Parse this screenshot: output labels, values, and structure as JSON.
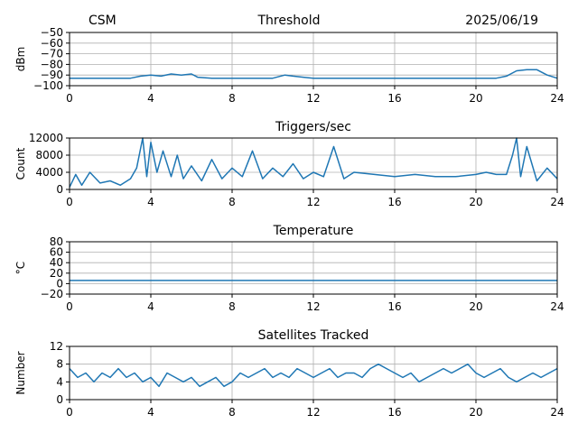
{
  "header": {
    "left": "CSM",
    "center": "Threshold",
    "right": "2025/06/19"
  },
  "colors": {
    "series": "#1f77b4",
    "grid": "#b0b0b0"
  },
  "chart_data": [
    {
      "type": "line",
      "title": "Threshold",
      "ylabel": "dBm",
      "xlabel": "",
      "xlim": [
        0,
        24
      ],
      "ylim": [
        -100,
        -50
      ],
      "x_ticks": [
        0,
        4,
        8,
        12,
        16,
        20,
        24
      ],
      "y_ticks": [
        -100,
        -90,
        -80,
        -70,
        -60,
        -50
      ],
      "grid": true,
      "series": [
        {
          "x": [
            0,
            1,
            2,
            3,
            3.5,
            4,
            4.5,
            5,
            5.5,
            6,
            6.3,
            7,
            8,
            9,
            10,
            10.6,
            11,
            11.5,
            12,
            13,
            14,
            15,
            16,
            17,
            18,
            19,
            20,
            21,
            21.5,
            22,
            22.5,
            23,
            23.5,
            24
          ],
          "values": [
            -93,
            -93,
            -93,
            -93,
            -91,
            -90,
            -91,
            -89,
            -90,
            -89,
            -92,
            -93,
            -93,
            -93,
            -93,
            -90,
            -91,
            -92,
            -93,
            -93,
            -93,
            -93,
            -93,
            -93,
            -93,
            -93,
            -93,
            -93,
            -91,
            -86,
            -85,
            -85,
            -90,
            -93
          ]
        }
      ]
    },
    {
      "type": "line",
      "title": "Triggers/sec",
      "ylabel": "Count",
      "xlabel": "",
      "xlim": [
        0,
        24
      ],
      "ylim": [
        0,
        12000
      ],
      "x_ticks": [
        0,
        4,
        8,
        12,
        16,
        20,
        24
      ],
      "y_ticks": [
        0,
        4000,
        8000,
        12000
      ],
      "grid": true,
      "series": [
        {
          "x": [
            0,
            0.3,
            0.6,
            1,
            1.5,
            2,
            2.5,
            3,
            3.3,
            3.6,
            3.8,
            4,
            4.3,
            4.6,
            5,
            5.3,
            5.6,
            6,
            6.5,
            7,
            7.5,
            8,
            8.5,
            9,
            9.5,
            10,
            10.5,
            11,
            11.5,
            12,
            12.5,
            13,
            13.5,
            14,
            15,
            16,
            17,
            18,
            19,
            20,
            20.5,
            21,
            21.5,
            21.8,
            22,
            22.2,
            22.5,
            23,
            23.5,
            24
          ],
          "values": [
            500,
            3500,
            1000,
            4000,
            1500,
            2000,
            1000,
            2500,
            5000,
            12000,
            3000,
            11000,
            4000,
            9000,
            3000,
            8000,
            2500,
            5500,
            2000,
            7000,
            2500,
            5000,
            3000,
            9000,
            2500,
            5000,
            3000,
            6000,
            2500,
            4000,
            3000,
            10000,
            2500,
            4000,
            3500,
            3000,
            3500,
            3000,
            3000,
            3500,
            4000,
            3500,
            3500,
            8000,
            12000,
            3000,
            10000,
            2000,
            5000,
            2500
          ]
        }
      ]
    },
    {
      "type": "line",
      "title": "Temperature",
      "ylabel": "°C",
      "xlabel": "",
      "xlim": [
        0,
        24
      ],
      "ylim": [
        -20,
        80
      ],
      "x_ticks": [
        0,
        4,
        8,
        12,
        16,
        20,
        24
      ],
      "y_ticks": [
        -20,
        0,
        20,
        40,
        60,
        80
      ],
      "grid": true,
      "series": [
        {
          "x": [
            0,
            4,
            8,
            12,
            16,
            20,
            24
          ],
          "values": [
            6,
            6,
            6,
            6,
            6,
            6,
            6
          ]
        }
      ]
    },
    {
      "type": "line",
      "title": "Satellites Tracked",
      "ylabel": "Number",
      "xlabel": "",
      "xlim": [
        0,
        24
      ],
      "ylim": [
        0,
        12
      ],
      "x_ticks": [
        0,
        4,
        8,
        12,
        16,
        20,
        24
      ],
      "y_ticks": [
        0,
        4,
        8,
        12
      ],
      "grid": true,
      "series": [
        {
          "x": [
            0,
            0.4,
            0.8,
            1.2,
            1.6,
            2,
            2.4,
            2.8,
            3.2,
            3.6,
            4,
            4.4,
            4.8,
            5.2,
            5.6,
            6,
            6.4,
            6.8,
            7.2,
            7.6,
            8,
            8.4,
            8.8,
            9.2,
            9.6,
            10,
            10.4,
            10.8,
            11.2,
            11.6,
            12,
            12.4,
            12.8,
            13.2,
            13.6,
            14,
            14.4,
            14.8,
            15.2,
            15.6,
            16,
            16.4,
            16.8,
            17.2,
            17.6,
            18,
            18.4,
            18.8,
            19.2,
            19.6,
            20,
            20.4,
            20.8,
            21.2,
            21.6,
            22,
            22.4,
            22.8,
            23.2,
            23.6,
            24
          ],
          "values": [
            7,
            5,
            6,
            4,
            6,
            5,
            7,
            5,
            6,
            4,
            5,
            3,
            6,
            5,
            4,
            5,
            3,
            4,
            5,
            3,
            4,
            6,
            5,
            6,
            7,
            5,
            6,
            5,
            7,
            6,
            5,
            6,
            7,
            5,
            6,
            6,
            5,
            7,
            8,
            7,
            6,
            5,
            6,
            4,
            5,
            6,
            7,
            6,
            7,
            8,
            6,
            5,
            6,
            7,
            5,
            4,
            5,
            6,
            5,
            6,
            7
          ]
        }
      ]
    }
  ]
}
